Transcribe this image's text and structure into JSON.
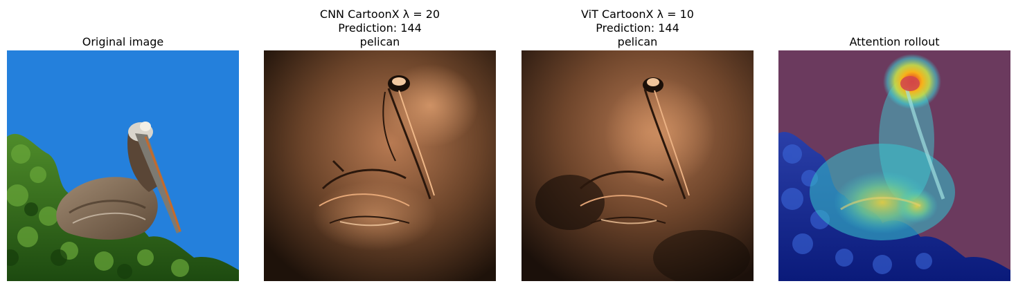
{
  "panels": [
    {
      "id": "original",
      "title_lines": [
        "Original image"
      ],
      "image": "pelican-photo"
    },
    {
      "id": "cnn-cartoonx",
      "title_lines": [
        "CNN CartoonX λ = 20",
        "Prediction: 144",
        "pelican"
      ],
      "image": "cartoonx-cnn-explanation"
    },
    {
      "id": "vit-cartoonx",
      "title_lines": [
        "ViT CartoonX λ = 10",
        "Prediction: 144",
        "pelican"
      ],
      "image": "cartoonx-vit-explanation"
    },
    {
      "id": "attention-rollout",
      "title_lines": [
        "Attention rollout"
      ],
      "image": "attention-heatmap-overlay"
    }
  ],
  "colors": {
    "sky": "#2480dc",
    "foliage": "#2f6b1c",
    "copper_bg": "#3a2416",
    "copper_hi": "#d39363",
    "attention_bg": "#6b3a5e"
  }
}
